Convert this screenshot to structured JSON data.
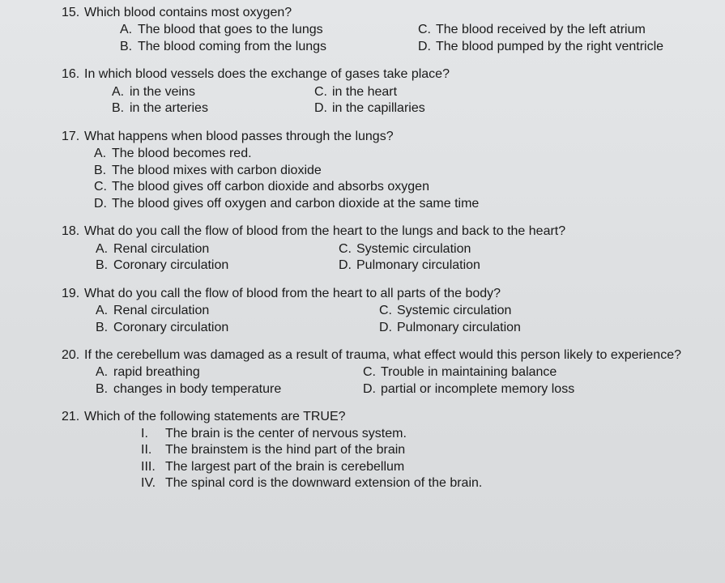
{
  "questions": [
    {
      "num": "15.",
      "stem": "Which blood contains most oxygen?",
      "optA": "The blood that goes to the lungs",
      "optB": "The blood coming from the lungs",
      "optC": "The blood received by the left atrium",
      "optD": "The blood pumped by the right ventricle"
    },
    {
      "num": "16.",
      "stem": "In which blood vessels does the exchange of gases take place?",
      "optA": "in the veins",
      "optB": "in the arteries",
      "optC": "in the heart",
      "optD": "in the capillaries"
    },
    {
      "num": "17.",
      "stem": "What happens when blood passes through the lungs?",
      "optA": "The blood becomes red.",
      "optB": "The blood mixes with carbon dioxide",
      "optC": "The blood gives off carbon dioxide and absorbs oxygen",
      "optD": "The blood gives off oxygen and carbon dioxide at the same time"
    },
    {
      "num": "18.",
      "stem": "What do you call the flow of blood from the heart to the lungs and back to the heart?",
      "optA": "Renal circulation",
      "optB": "Coronary circulation",
      "optC": "Systemic circulation",
      "optD": "Pulmonary circulation"
    },
    {
      "num": "19.",
      "stem": "What do you call the flow of blood from the heart to all parts of the body?",
      "optA": "Renal circulation",
      "optB": "Coronary circulation",
      "optC": "Systemic circulation",
      "optD": "Pulmonary circulation"
    },
    {
      "num": "20.",
      "stem": "If the cerebellum was damaged as a result of trauma, what effect would this person likely to experience?",
      "optA": "rapid breathing",
      "optB": "changes in body temperature",
      "optC": "Trouble in maintaining balance",
      "optD": "partial or incomplete memory loss"
    },
    {
      "num": "21.",
      "stem": "Which of the following statements are TRUE?",
      "s1": "The brain is the center of nervous system.",
      "s2": "The brainstem is the hind part of the brain",
      "s3": "The largest part of the brain is cerebellum",
      "s4": "The spinal cord is the downward extension of the brain."
    }
  ],
  "letters": {
    "A": "A.",
    "B": "B.",
    "C": "C.",
    "D": "D."
  },
  "romans": {
    "I": "I.",
    "II": "II.",
    "III": "III.",
    "IV": "IV."
  },
  "style": {
    "background": "#e0e2e4",
    "text_color": "#1a1a1a",
    "font_family": "Arial",
    "font_size_pt": 12
  }
}
